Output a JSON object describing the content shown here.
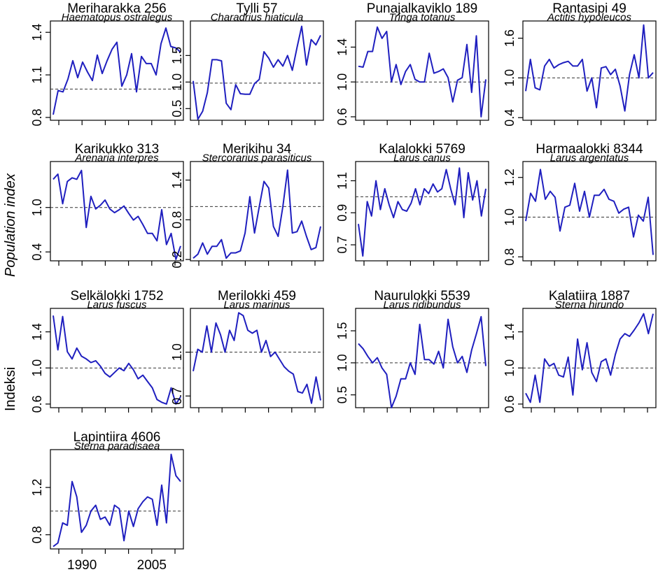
{
  "figure": {
    "ylabel_primary": "Population index",
    "ylabel_secondary": "Indeksi",
    "xticks": [
      "1990",
      "2005"
    ]
  },
  "colors": {
    "line": "#1f1fbf",
    "reference": "#333333",
    "axis": "#000000"
  },
  "chart_data": [
    {
      "type": "line",
      "title": "Meriharakka 256",
      "subtitle": "Haematopus ostralegus",
      "yticks": [
        0.8,
        1.1,
        1.4
      ],
      "ylim": [
        0.78,
        1.48
      ],
      "ref": 1.0,
      "values": [
        0.82,
        0.99,
        0.98,
        1.07,
        1.2,
        1.08,
        1.19,
        1.12,
        1.06,
        1.24,
        1.11,
        1.2,
        1.28,
        1.33,
        1.02,
        1.1,
        1.25,
        0.98,
        1.23,
        1.18,
        1.18,
        1.1,
        1.32,
        1.43,
        1.3,
        1.29,
        1.26
      ]
    },
    {
      "type": "line",
      "title": "Tylli 57",
      "subtitle": "Charadrius hiaticula",
      "yticks": [
        0.5,
        1.0,
        1.5
      ],
      "ylim": [
        0.28,
        2.15
      ],
      "ref": 0.98,
      "values": [
        1.02,
        0.3,
        0.45,
        0.8,
        1.42,
        1.42,
        1.4,
        0.6,
        0.48,
        0.95,
        0.78,
        0.77,
        0.77,
        0.97,
        1.05,
        1.57,
        1.45,
        1.28,
        1.42,
        1.3,
        1.5,
        1.22,
        1.65,
        2.05,
        1.32,
        1.8,
        1.7,
        1.88
      ]
    },
    {
      "type": "line",
      "title": "Punajalkaviklo 189",
      "subtitle": "Tringa totanus",
      "yticks": [
        0.6,
        1.0,
        1.4
      ],
      "ylim": [
        0.56,
        1.7
      ],
      "ref": 1.0,
      "values": [
        1.18,
        1.17,
        1.35,
        1.35,
        1.63,
        1.5,
        1.58,
        1.0,
        1.2,
        0.97,
        1.12,
        1.2,
        1.03,
        1.0,
        1.0,
        1.33,
        1.1,
        1.12,
        1.15,
        1.05,
        0.77,
        1.02,
        1.05,
        1.43,
        0.88,
        1.53,
        0.6,
        1.03
      ]
    },
    {
      "type": "line",
      "title": "Rantasipi 49",
      "subtitle": "Actitis hypoleucos",
      "yticks": [
        0.4,
        1.0,
        1.6
      ],
      "ylim": [
        0.36,
        1.86
      ],
      "ref": 1.0,
      "values": [
        0.8,
        1.28,
        0.85,
        0.82,
        1.18,
        1.28,
        1.15,
        1.2,
        1.23,
        1.25,
        1.18,
        1.18,
        1.28,
        0.8,
        1.0,
        0.55,
        1.15,
        1.17,
        1.05,
        1.13,
        0.88,
        0.5,
        1.05,
        1.35,
        1.0,
        1.8,
        1.0,
        1.08
      ]
    },
    {
      "type": "line",
      "title": "Karikukko 313",
      "subtitle": "Arenaria interpres",
      "yticks": [
        0.4,
        1.0
      ],
      "ylim": [
        0.28,
        1.62
      ],
      "ref": 1.0,
      "values": [
        1.38,
        1.45,
        1.05,
        1.35,
        1.4,
        1.38,
        1.5,
        0.73,
        1.15,
        0.98,
        1.03,
        1.1,
        0.98,
        0.93,
        0.97,
        1.02,
        0.92,
        0.83,
        0.88,
        0.77,
        0.65,
        0.65,
        0.55,
        0.97,
        0.5,
        0.65,
        0.3,
        0.48
      ]
    },
    {
      "type": "line",
      "title": "Merikihu 34",
      "subtitle": "Stercorarius parasiticus",
      "yticks": [
        0.2,
        0.8,
        1.4
      ],
      "ylim": [
        0.18,
        1.68
      ],
      "ref": 1.0,
      "values": [
        0.22,
        0.28,
        0.45,
        0.28,
        0.4,
        0.4,
        0.5,
        0.22,
        0.3,
        0.3,
        0.33,
        0.6,
        1.15,
        0.6,
        1.0,
        1.38,
        1.28,
        0.7,
        0.55,
        1.0,
        1.55,
        0.6,
        0.62,
        0.78,
        0.55,
        0.35,
        0.38,
        0.7
      ]
    },
    {
      "type": "line",
      "title": "Kalalokki 5769",
      "subtitle": "Larus canus",
      "yticks": [
        0.7,
        0.9,
        1.1
      ],
      "ylim": [
        0.6,
        1.22
      ],
      "ref": 1.0,
      "values": [
        0.83,
        0.63,
        0.97,
        0.88,
        1.1,
        0.92,
        1.05,
        0.95,
        0.87,
        0.97,
        0.92,
        0.91,
        0.96,
        1.05,
        0.95,
        1.05,
        1.02,
        1.08,
        1.03,
        1.05,
        1.17,
        1.05,
        0.95,
        1.18,
        0.87,
        1.15,
        0.98,
        1.1,
        0.88,
        1.05
      ]
    },
    {
      "type": "line",
      "title": "Harmaalokki 8344",
      "subtitle": "Larus argentatus",
      "yticks": [
        0.8,
        1.0,
        1.2
      ],
      "ylim": [
        0.78,
        1.28
      ],
      "ref": 1.0,
      "values": [
        0.98,
        1.12,
        1.08,
        1.24,
        1.09,
        1.13,
        1.1,
        0.93,
        1.05,
        1.06,
        1.17,
        1.03,
        1.13,
        1.0,
        1.11,
        1.11,
        1.14,
        1.09,
        1.08,
        1.02,
        1.04,
        1.05,
        0.9,
        1.01,
        0.98,
        1.1,
        0.81
      ]
    },
    {
      "type": "line",
      "title": "Selkälokki 1752",
      "subtitle": "Larus fuscus",
      "yticks": [
        0.6,
        1.0,
        1.4
      ],
      "ylim": [
        0.56,
        1.66
      ],
      "ref": 1.0,
      "values": [
        1.58,
        1.2,
        1.57,
        1.18,
        1.1,
        1.22,
        1.13,
        1.1,
        1.06,
        1.08,
        1.02,
        0.94,
        0.9,
        0.95,
        1.0,
        0.97,
        1.05,
        0.98,
        0.88,
        0.92,
        0.85,
        0.78,
        0.65,
        0.62,
        0.6,
        0.78,
        0.6,
        0.68
      ]
    },
    {
      "type": "line",
      "title": "Merilokki 459",
      "subtitle": "Larus marinus",
      "yticks": [
        0.7,
        1.0
      ],
      "ylim": [
        0.62,
        1.3
      ],
      "ref": 1.0,
      "values": [
        0.87,
        1.02,
        1.0,
        1.18,
        1.0,
        1.2,
        1.12,
        1.0,
        1.15,
        1.08,
        1.27,
        1.25,
        1.15,
        1.13,
        1.15,
        1.0,
        1.08,
        0.97,
        1.0,
        0.95,
        0.9,
        0.87,
        0.85,
        0.73,
        0.72,
        0.78,
        0.65,
        0.83,
        0.67
      ]
    },
    {
      "type": "line",
      "title": "Naurulokki 5539",
      "subtitle": "Larus ridibundus",
      "yticks": [
        0.5,
        1.0,
        1.5
      ],
      "ylim": [
        0.3,
        1.85
      ],
      "ref": 1.0,
      "values": [
        1.3,
        1.22,
        1.1,
        1.0,
        1.08,
        0.92,
        0.82,
        0.3,
        0.48,
        0.75,
        0.75,
        1.0,
        0.82,
        1.6,
        1.05,
        1.05,
        0.98,
        1.18,
        0.92,
        1.68,
        1.25,
        1.0,
        1.1,
        0.85,
        1.2,
        1.45,
        1.72,
        0.95
      ]
    },
    {
      "type": "line",
      "title": "Kalatiira 1887",
      "subtitle": "Sterna hirundo",
      "yticks": [
        0.6,
        1.0,
        1.4
      ],
      "ylim": [
        0.56,
        1.66
      ],
      "ref": 1.0,
      "values": [
        0.72,
        0.62,
        0.92,
        0.62,
        1.1,
        1.02,
        1.05,
        0.92,
        0.9,
        1.12,
        0.7,
        1.32,
        0.98,
        1.28,
        0.95,
        0.85,
        1.07,
        1.1,
        0.92,
        1.15,
        1.32,
        1.38,
        1.35,
        1.42,
        1.5,
        1.6,
        1.38,
        1.6
      ]
    },
    {
      "type": "line",
      "title": "Lapintiira 4606",
      "subtitle": "Sterna paradisaea",
      "yticks": [
        0.8,
        1.2
      ],
      "ylim": [
        0.68,
        1.52
      ],
      "ref": 1.0,
      "values": [
        0.7,
        0.73,
        0.9,
        0.88,
        1.25,
        1.12,
        0.82,
        0.88,
        1.0,
        1.05,
        0.93,
        0.95,
        0.88,
        1.05,
        1.02,
        0.75,
        1.0,
        0.87,
        1.02,
        1.08,
        1.12,
        1.1,
        0.88,
        1.22,
        0.9,
        1.48,
        1.3,
        1.25
      ]
    }
  ]
}
